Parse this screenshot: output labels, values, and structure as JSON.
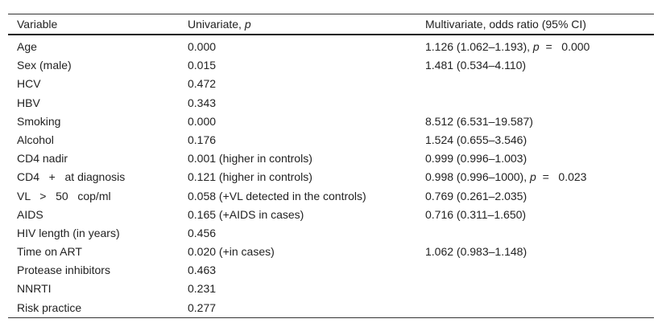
{
  "header": {
    "variable": "Variable",
    "univariate": "Univariate, ",
    "univariate_p": "p",
    "multivariate": "Multivariate, odds ratio (95% CI)"
  },
  "rows": [
    {
      "variable": "Age",
      "univariate": "0.000",
      "multivariate": "1.126 (1.062–1.193), ",
      "mv_p": "p",
      "mv_p_value": "  =   0.000"
    },
    {
      "variable": "Sex (male)",
      "univariate": "0.015",
      "multivariate": "1.481 (0.534–4.110)"
    },
    {
      "variable": "HCV",
      "univariate": "0.472"
    },
    {
      "variable": "HBV",
      "univariate": "0.343"
    },
    {
      "variable": "Smoking",
      "univariate": "0.000",
      "multivariate": "8.512 (6.531–19.587)"
    },
    {
      "variable": "Alcohol",
      "univariate": "0.176",
      "multivariate": "1.524 (0.655–3.546)"
    },
    {
      "variable": "CD4 nadir",
      "univariate": "0.001 (higher in controls)",
      "multivariate": "0.999 (0.996–1.003)"
    },
    {
      "variable": "CD4   +   at diagnosis",
      "univariate": "0.121 (higher in controls)",
      "multivariate": "0.998 (0.996–1000), ",
      "mv_p": "p",
      "mv_p_value": "  =   0.023"
    },
    {
      "variable": "VL   >   50   cop/ml",
      "univariate": "0.058 (+VL detected in the controls)",
      "multivariate": "0.769 (0.261–2.035)"
    },
    {
      "variable": "AIDS",
      "univariate": "0.165 (+AIDS in cases)",
      "multivariate": "0.716 (0.311–1.650)"
    },
    {
      "variable": "HIV length (in years)",
      "univariate": "0.456"
    },
    {
      "variable": "Time on ART",
      "univariate": "0.020 (+in cases)",
      "multivariate": "1.062 (0.983–1.148)"
    },
    {
      "variable": "Protease inhibitors",
      "univariate": "0.463"
    },
    {
      "variable": "NNRTI",
      "univariate": "0.231"
    },
    {
      "variable": "Risk practice",
      "univariate": "0.277"
    }
  ]
}
